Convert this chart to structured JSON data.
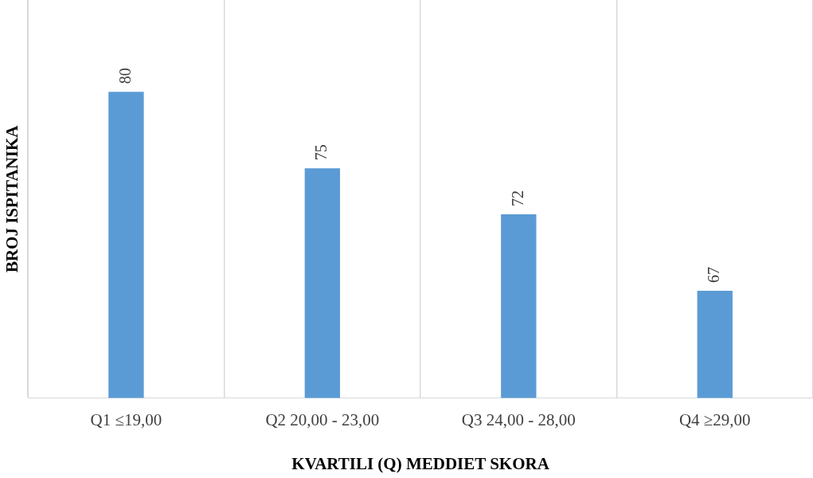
{
  "chart_data": {
    "type": "bar",
    "xlabel": "KVARTILI (Q) MEDDIET SKORA",
    "ylabel": "BROJ ISPITANIKA",
    "categories": [
      "Q1 ≤19,00",
      "Q2 20,00 - 23,00",
      "Q3 24,00 - 28,00",
      "Q4 ≥29,00"
    ],
    "values": [
      80,
      75,
      72,
      67
    ],
    "color": "#5b9bd5",
    "ylim": [
      60,
      86
    ],
    "grid": "x",
    "data_labels": true,
    "tick_labels": "x"
  }
}
